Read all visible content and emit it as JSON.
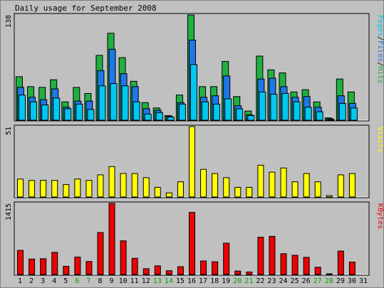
{
  "chart_data": {
    "type": "bar",
    "title": "Daily usage for September 2008",
    "days": [
      "1",
      "2",
      "3",
      "4",
      "5",
      "6",
      "7",
      "8",
      "9",
      "10",
      "11",
      "12",
      "13",
      "14",
      "15",
      "16",
      "17",
      "18",
      "19",
      "20",
      "21",
      "22",
      "23",
      "24",
      "25",
      "26",
      "27",
      "28",
      "29",
      "30",
      "31"
    ],
    "weekend_days": [
      "6",
      "7",
      "13",
      "14",
      "20",
      "21",
      "27",
      "28"
    ],
    "colors": {
      "background": "#c0c0c0",
      "hits": "#20b040",
      "files": "#1e78e8",
      "pages": "#00c8f0",
      "visits": "#ffff00",
      "kbytes": "#ee0000",
      "weekday_label": "#000000",
      "weekend_label": "#00a000",
      "frame": "#000000"
    },
    "panels": [
      {
        "id": "hits-files-pages",
        "ymax_label": "138",
        "ymax": 138,
        "legend": [
          "Pages",
          "/",
          "Files",
          "/",
          "Hits"
        ],
        "legend_colors": [
          "#00c8f0",
          "#000000",
          "#1e78e8",
          "#000000",
          "#20b040"
        ],
        "series": [
          {
            "name": "Hits",
            "color": "#20b040",
            "values": [
              57,
              44,
              43,
              53,
              24,
              43,
              35,
              85,
              114,
              82,
              51,
              23,
              16,
              6,
              33,
              138,
              44,
              44,
              77,
              31,
              12,
              84,
              66,
              62,
              37,
              40,
              24,
              3,
              54,
              37,
              null
            ]
          },
          {
            "name": "Files",
            "color": "#1e78e8",
            "values": [
              43,
              30,
              27,
              41,
              17,
              25,
              25,
              65,
              93,
              61,
              44,
              15,
              13,
              5,
              23,
              105,
              30,
              32,
              58,
              19,
              7,
              54,
              55,
              44,
              30,
              31,
              17,
              2,
              32,
              22,
              null
            ]
          },
          {
            "name": "Pages",
            "color": "#00c8f0",
            "values": [
              33,
              24,
              20,
              29,
              15,
              21,
              14,
              45,
              48,
              45,
              24,
              8,
              10,
              4,
              21,
              73,
              24,
              21,
              28,
              15,
              6,
              37,
              34,
              35,
              24,
              17,
              11,
              1,
              22,
              16,
              null
            ]
          }
        ]
      },
      {
        "id": "visits",
        "ymax_label": "51",
        "ymax": 51,
        "legend": [
          "Visits"
        ],
        "legend_colors": [
          "#ffff00"
        ],
        "series": [
          {
            "name": "Visits",
            "color": "#ffff00",
            "values": [
              13,
              12,
              12,
              12,
              9,
              13,
              12,
              16,
              22,
              17,
              17,
              14,
              7,
              3,
              11,
              51,
              20,
              17,
              14,
              7,
              7,
              23,
              18,
              21,
              11,
              17,
              11,
              1,
              16,
              17,
              null
            ]
          }
        ]
      },
      {
        "id": "kbytes",
        "ymax_label": "1415",
        "ymax": 1415,
        "legend": [
          "KBytes"
        ],
        "legend_colors": [
          "#ee0000"
        ],
        "series": [
          {
            "name": "KBytes",
            "color": "#ee0000",
            "values": [
              481,
              307,
              315,
              440,
              163,
              347,
              259,
              835,
              1415,
              670,
              322,
              115,
              172,
              75,
              156,
              1236,
              269,
              253,
              623,
              69,
              50,
              742,
              759,
              414,
              383,
              342,
              144,
              10,
              466,
              247,
              null
            ]
          }
        ]
      }
    ]
  }
}
